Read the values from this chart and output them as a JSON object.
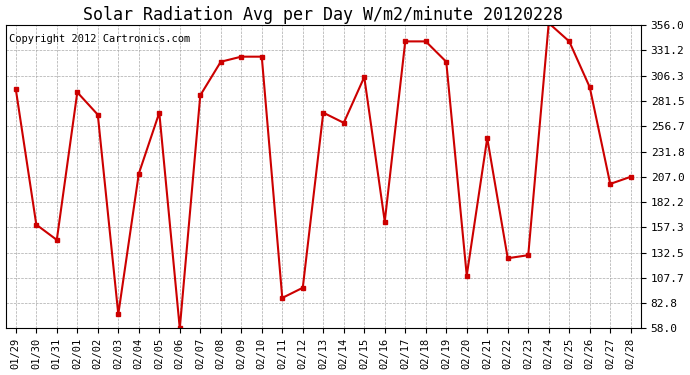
{
  "title": "Solar Radiation Avg per Day W/m2/minute 20120228",
  "copyright": "Copyright 2012 Cartronics.com",
  "dates": [
    "01/29",
    "01/30",
    "01/31",
    "02/01",
    "02/02",
    "02/03",
    "02/04",
    "02/05",
    "02/06",
    "02/07",
    "02/08",
    "02/09",
    "02/10",
    "02/11",
    "02/12",
    "02/13",
    "02/14",
    "02/15",
    "02/16",
    "02/17",
    "02/18",
    "02/19",
    "02/20",
    "02/21",
    "02/22",
    "02/23",
    "02/24",
    "02/25",
    "02/26",
    "02/27",
    "02/28"
  ],
  "values": [
    293.0,
    160.0,
    145.0,
    290.0,
    268.0,
    72.0,
    210.0,
    270.0,
    58.0,
    287.0,
    320.0,
    325.0,
    325.0,
    88.0,
    98.0,
    270.0,
    260.0,
    305.0,
    163.0,
    340.0,
    340.0,
    320.0,
    110.0,
    245.0,
    127.0,
    130.0,
    358.0,
    340.0,
    295.0,
    200.0,
    207.0
  ],
  "line_color": "#cc0000",
  "marker": "s",
  "marker_size": 3.5,
  "bg_color": "#ffffff",
  "grid_color": "#aaaaaa",
  "ylim": [
    58.0,
    356.0
  ],
  "yticks": [
    58.0,
    82.8,
    107.7,
    132.5,
    157.3,
    182.2,
    207.0,
    231.8,
    256.7,
    281.5,
    306.3,
    331.2,
    356.0
  ],
  "title_fontsize": 12,
  "copyright_fontsize": 7.5
}
